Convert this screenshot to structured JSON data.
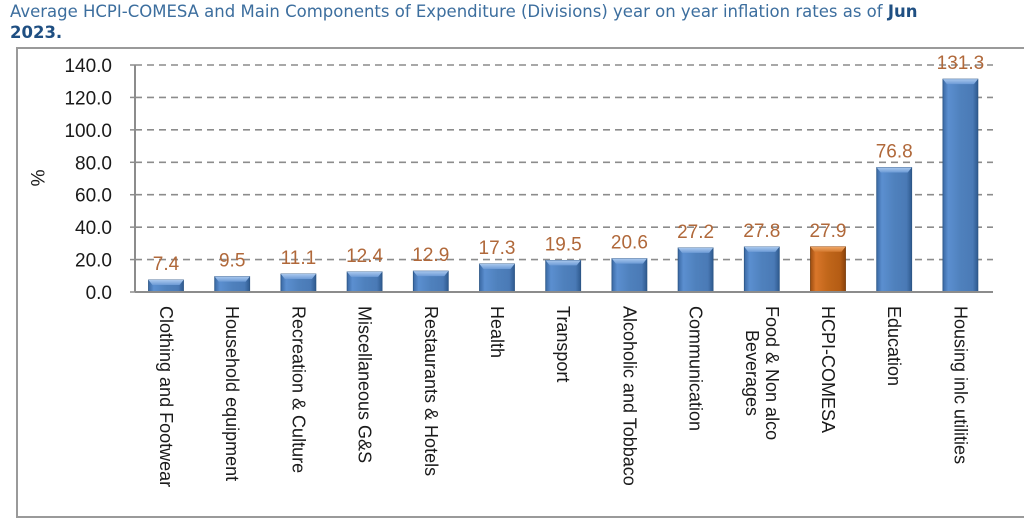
{
  "title": {
    "line1_prefix": "Average HCPI-COMESA and Main Components of Expenditure (Divisions) year on year inflation rates as of ",
    "line1_bold": "Jun",
    "line2_bold": "2023."
  },
  "colors": {
    "bar_default": "#4f81bd",
    "bar_highlight": "#c0661a",
    "data_label": "#b0683a",
    "title": "#3c6e9e",
    "gridline": "#8c8c8c"
  },
  "chart_data": {
    "type": "bar",
    "title": "Average HCPI-COMESA and Main Components of Expenditure (Divisions) year on year inflation rates as of Jun 2023.",
    "xlabel": "",
    "ylabel": "%",
    "ylim": [
      0,
      140
    ],
    "yticks": [
      "0.0",
      "20.0",
      "40.0",
      "60.0",
      "80.0",
      "100.0",
      "120.0",
      "140.0"
    ],
    "grid": "horizontal-dashed",
    "categories": [
      "Clothing and Footwear",
      "Household equipment",
      "Recreation & Culture",
      "Miscellaneous G&S",
      "Restaurants & Hotels",
      "Health",
      "Transport",
      "Alcoholic and Tobbaco",
      "Communication",
      "Food & Non alco Beverages",
      "HCPI-COMESA",
      "Education",
      "Housing inlc utilities"
    ],
    "category_lines": [
      [
        "Clothing and Footwear"
      ],
      [
        "Household equipment"
      ],
      [
        "Recreation & Culture"
      ],
      [
        "Miscellaneous G&S"
      ],
      [
        "Restaurants & Hotels"
      ],
      [
        "Health"
      ],
      [
        "Transport"
      ],
      [
        "Alcoholic and Tobbaco"
      ],
      [
        "Communication"
      ],
      [
        "Food & Non alco",
        "Beverages"
      ],
      [
        "HCPI-COMESA"
      ],
      [
        "Education"
      ],
      [
        "Housing inlc utilities"
      ]
    ],
    "values": [
      7.4,
      9.5,
      11.1,
      12.4,
      12.9,
      17.3,
      19.5,
      20.6,
      27.2,
      27.8,
      27.9,
      76.8,
      131.3
    ],
    "data_labels": [
      "7.4",
      "9.5",
      "11.1",
      "12.4",
      "12.9",
      "17.3",
      "19.5",
      "20.6",
      "27.2",
      "27.8",
      "27.9",
      "76.8",
      "131.3"
    ],
    "highlight": "HCPI-COMESA"
  }
}
